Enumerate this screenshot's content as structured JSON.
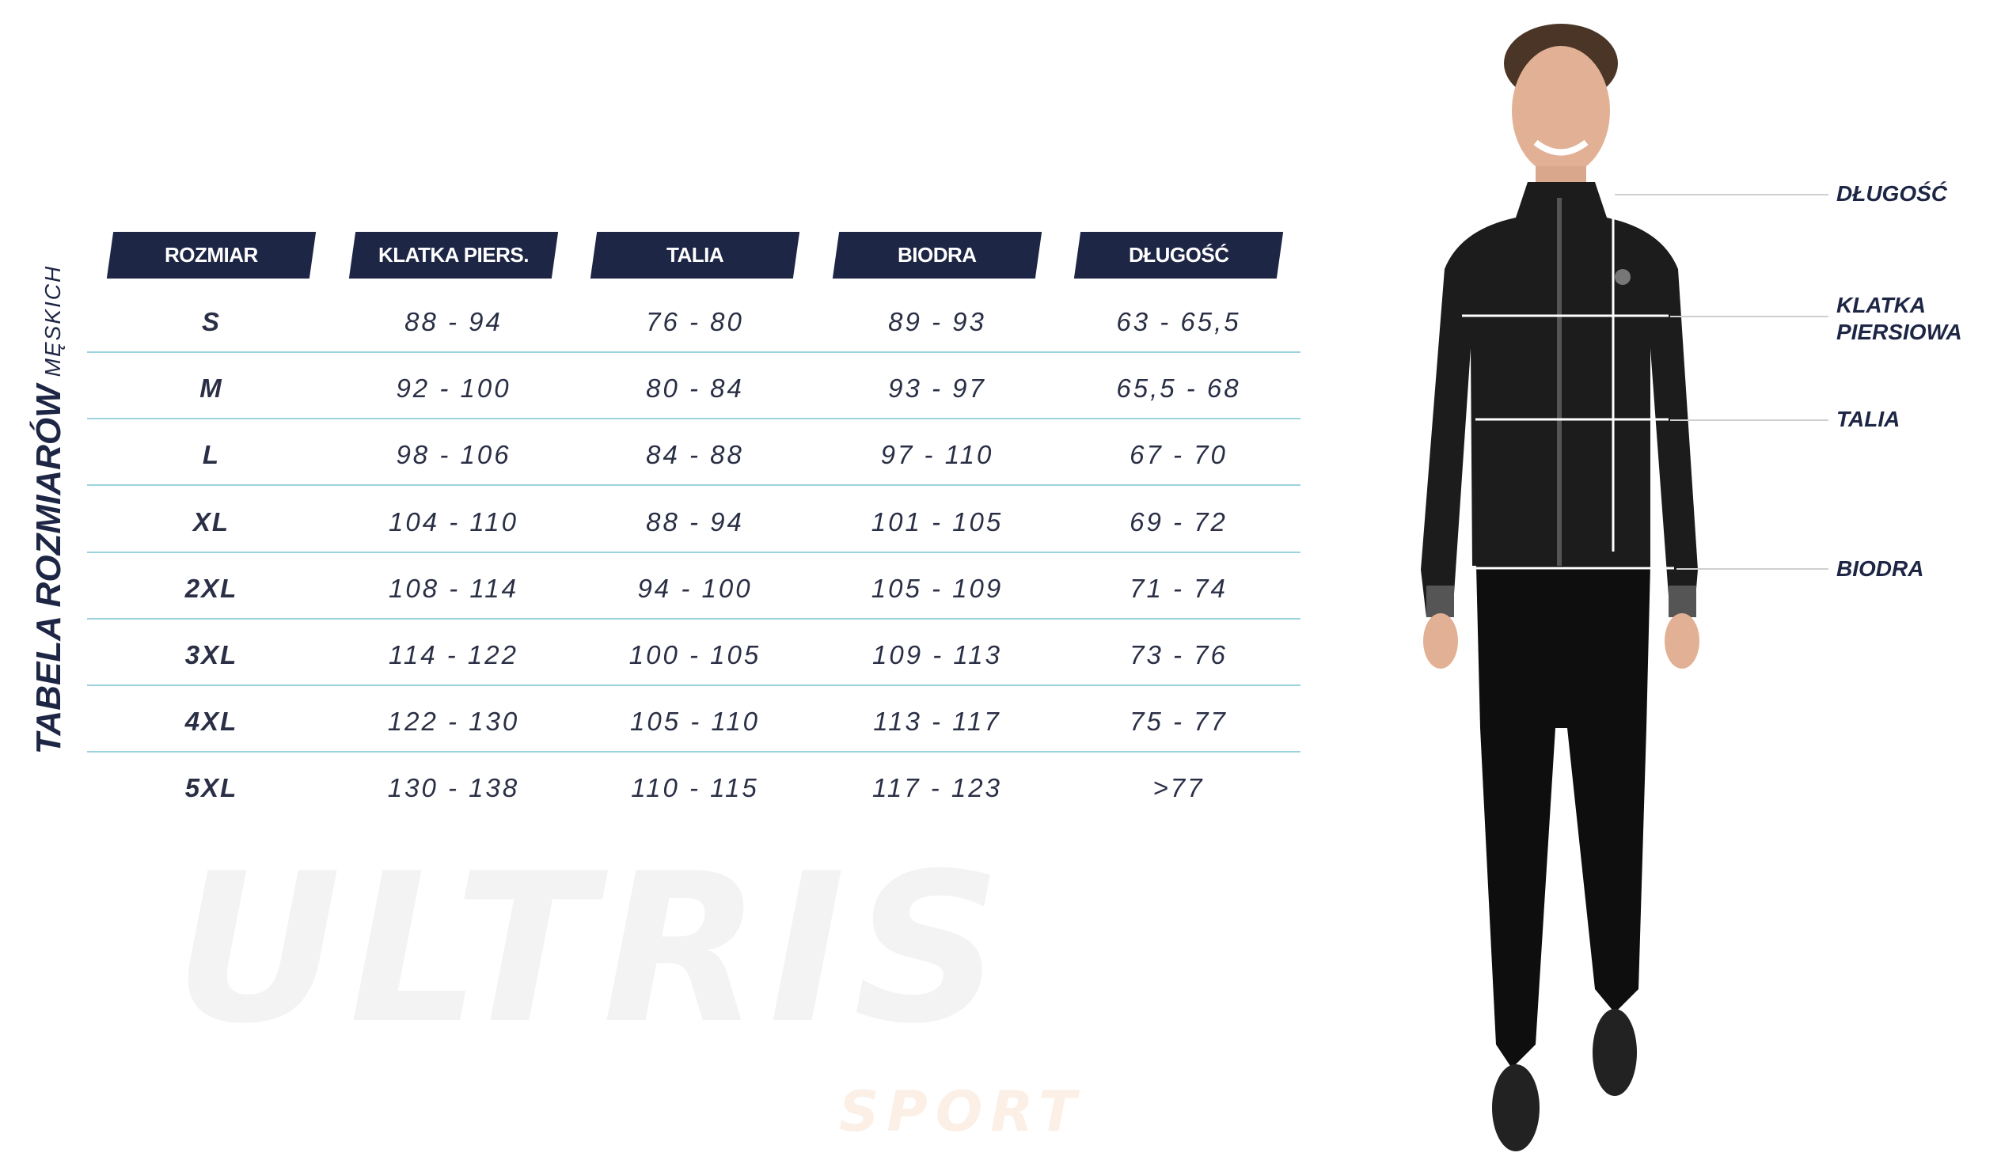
{
  "title": {
    "main": "TABELA ROZMIARÓW",
    "sub": "MĘSKICH"
  },
  "watermark": {
    "brand": "ULTRIS",
    "sub": "SPORT"
  },
  "colors": {
    "header_bg": "#1e2645",
    "row_line": "#9dd3de",
    "text": "#2a2f45"
  },
  "table": {
    "headers": [
      "ROZMIAR",
      "KLATKA PIERS.",
      "TALIA",
      "BIODRA",
      "DŁUGOŚĆ"
    ],
    "rows": [
      [
        "S",
        "88 - 94",
        "76 - 80",
        "89 - 93",
        "63 - 65,5"
      ],
      [
        "M",
        "92 - 100",
        "80 - 84",
        "93 - 97",
        "65,5 - 68"
      ],
      [
        "L",
        "98 - 106",
        "84 - 88",
        "97 - 110",
        "67 - 70"
      ],
      [
        "XL",
        "104 - 110",
        "88 - 94",
        "101 - 105",
        "69 - 72"
      ],
      [
        "2XL",
        "108 - 114",
        "94 - 100",
        "105 - 109",
        "71 - 74"
      ],
      [
        "3XL",
        "114 - 122",
        "100 - 105",
        "109 - 113",
        "73 - 76"
      ],
      [
        "4XL",
        "122 - 130",
        "105 - 110",
        "113 - 117",
        "75 - 77"
      ],
      [
        "5XL",
        "130 - 138",
        "110 - 115",
        "117 - 123",
        ">77"
      ]
    ]
  },
  "measure_labels": {
    "length": "DŁUGOŚĆ",
    "chest_1": "KLATKA",
    "chest_2": "PIERSIOWA",
    "waist": "TALIA",
    "hips": "BIODRA"
  }
}
